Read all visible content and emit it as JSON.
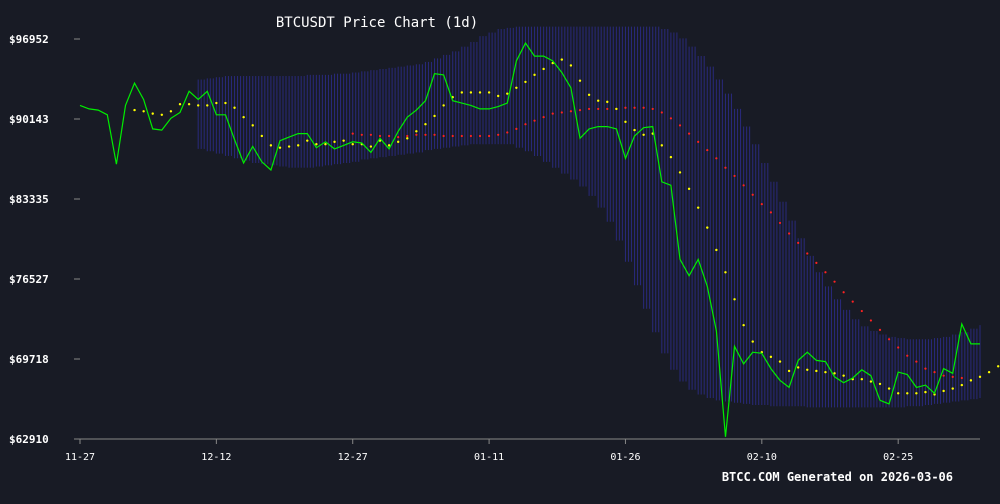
{
  "chart_data": {
    "type": "line",
    "title": "BTCUSDT Price Chart (1d)",
    "footer": "BTCC.COM Generated on 2026-03-06",
    "xlabel": "",
    "ylabel": "",
    "y_ticks": [
      "$96952",
      "$90143",
      "$83335",
      "$76527",
      "$69718",
      "$62910"
    ],
    "y_tick_values": [
      96952,
      90143,
      83335,
      76527,
      69718,
      62910
    ],
    "ylim": [
      62910,
      96952
    ],
    "x_ticks": [
      {
        "label": "11-27",
        "day": 0
      },
      {
        "label": "12-12",
        "day": 15
      },
      {
        "label": "12-27",
        "day": 30
      },
      {
        "label": "01-11",
        "day": 45
      },
      {
        "label": "01-26",
        "day": 60
      },
      {
        "label": "02-10",
        "day": 75
      },
      {
        "label": "02-25",
        "day": 90
      }
    ],
    "grid": false,
    "colors": {
      "background": "#181b25",
      "price": "#00ee00",
      "ma_short": "#ffff00",
      "ma_long": "#ff2222",
      "band": "#2c2c8c",
      "axis": "#888888",
      "text": "#ffffff"
    },
    "series": [
      {
        "style": "line",
        "values": [
          91300,
          91000,
          90900,
          90500,
          86300,
          91300,
          93200,
          91800,
          89300,
          89200,
          90200,
          90700,
          92500,
          91800,
          92500,
          90500,
          90500,
          88400,
          86400,
          87800,
          86500,
          85800,
          88300,
          88600,
          88900,
          88900,
          87700,
          88200,
          87600,
          87900,
          88200,
          88100,
          87300,
          88500,
          87600,
          89100,
          90300,
          90900,
          91700,
          94000,
          93900,
          91700,
          91500,
          91300,
          91000,
          91000,
          91200,
          91500,
          95100,
          96600,
          95500,
          95500,
          95100,
          94100,
          92800,
          88500,
          89300,
          89500,
          89500,
          89300,
          86800,
          88700,
          89400,
          89500,
          84800,
          84500,
          78200,
          76800,
          78200,
          75900,
          72100,
          63100,
          70800,
          69300,
          70300,
          70200,
          68900,
          67900,
          67300,
          69600,
          70300,
          69600,
          69500,
          68200,
          67700,
          68100,
          68800,
          68300,
          66200,
          65900,
          68600,
          68400,
          67300,
          67500,
          66800,
          68900,
          68500,
          72700,
          71000,
          71000
        ]
      },
      {
        "style": "dots",
        "start_day": 6,
        "values": [
          90900,
          90800,
          90600,
          90500,
          90800,
          91400,
          91400,
          91300,
          91300,
          91500,
          91500,
          91100,
          90300,
          89600,
          88700,
          87900,
          87700,
          87800,
          87900,
          88300,
          88000,
          88000,
          88200,
          88300,
          88000,
          88000,
          87800,
          88300,
          87900,
          88200,
          88500,
          89100,
          89700,
          90400,
          91300,
          92000,
          92400,
          92400,
          92400,
          92400,
          92100,
          92300,
          92800,
          93300,
          93900,
          94400,
          94900,
          95200,
          94700,
          93400,
          92200,
          91700,
          91600,
          91000,
          89900,
          89200,
          88800,
          88900,
          87900,
          86900,
          85600,
          84200,
          82600,
          80900,
          79000,
          77100,
          74800,
          72600,
          71200,
          70300,
          69900,
          69500,
          68700,
          69000,
          68800,
          68700,
          68600,
          68500,
          68300,
          68000,
          68000,
          67800,
          67600,
          67200,
          66800,
          66800,
          66800,
          66900,
          66700,
          67000,
          67200,
          67500,
          67900,
          68200,
          68600,
          69100
        ]
      },
      {
        "style": "dots",
        "start_day": 30,
        "values": [
          88900,
          88800,
          88800,
          88700,
          88700,
          88600,
          88700,
          88800,
          88800,
          88800,
          88700,
          88700,
          88700,
          88700,
          88700,
          88700,
          88800,
          89000,
          89300,
          89700,
          90000,
          90300,
          90600,
          90700,
          90800,
          90900,
          91000,
          91000,
          91000,
          91000,
          91100,
          91100,
          91100,
          91000,
          90700,
          90200,
          89600,
          88900,
          88200,
          87500,
          86800,
          86000,
          85300,
          84500,
          83700,
          82900,
          82200,
          81300,
          80400,
          79600,
          78700,
          77900,
          77100,
          76300,
          75400,
          74600,
          73800,
          73000,
          72200,
          71400,
          70700,
          70000,
          69500,
          68900,
          68600,
          68300,
          68200,
          68100
        ]
      },
      {
        "style": "band",
        "start_day": 13,
        "upper": [
          93500,
          93600,
          93700,
          93800,
          93800,
          93800,
          93800,
          93800,
          93800,
          93800,
          93800,
          93800,
          93900,
          93900,
          93900,
          94000,
          94000,
          94100,
          94200,
          94300,
          94400,
          94500,
          94600,
          94700,
          94800,
          95000,
          95300,
          95600,
          95900,
          96300,
          96700,
          97200,
          97500,
          97800,
          97900,
          98000,
          98000,
          98000,
          98000,
          98000,
          98000,
          98000,
          98000,
          98000,
          98000,
          98000,
          98000,
          98000,
          98000,
          98000,
          98000,
          97800,
          97500,
          97000,
          96300,
          95500,
          94600,
          93500,
          92300,
          91000,
          89500,
          88000,
          86400,
          84800,
          83100,
          81500,
          80000,
          78500,
          77100,
          75900,
          74800,
          73900,
          73100,
          72500,
          72100,
          71800,
          71600,
          71500,
          71400,
          71400,
          71400,
          71500,
          71600,
          71800,
          72000,
          72300,
          72600
        ],
        "lower": [
          87600,
          87400,
          87200,
          87000,
          86800,
          86600,
          86400,
          86300,
          86200,
          86100,
          86000,
          86000,
          86000,
          86100,
          86200,
          86300,
          86400,
          86500,
          86700,
          86800,
          86900,
          87000,
          87100,
          87200,
          87300,
          87500,
          87600,
          87700,
          87800,
          87900,
          88000,
          88000,
          88000,
          88000,
          88000,
          87700,
          87400,
          87000,
          86500,
          86000,
          85500,
          85000,
          84400,
          83600,
          82600,
          81400,
          79800,
          78000,
          76000,
          74000,
          72000,
          70200,
          68800,
          67800,
          67100,
          66700,
          66400,
          66200,
          66100,
          66000,
          65900,
          65800,
          65800,
          65700,
          65700,
          65700,
          65700,
          65600,
          65600,
          65600,
          65600,
          65600,
          65600,
          65600,
          65600,
          65600,
          65600,
          65600,
          65700,
          65700,
          65800,
          65900,
          66000,
          66100,
          66200,
          66300,
          66400
        ]
      }
    ]
  }
}
